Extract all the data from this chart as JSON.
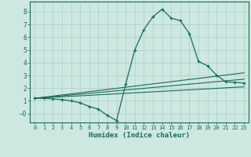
{
  "xlabel": "Humidex (Indice chaleur)",
  "background_color": "#cce8e0",
  "grid_color": "#aacfc8",
  "line_color": "#1a6b5a",
  "xlim": [
    -0.5,
    23.5
  ],
  "ylim": [
    -0.7,
    8.8
  ],
  "xticks": [
    0,
    1,
    2,
    3,
    4,
    5,
    6,
    7,
    8,
    9,
    10,
    11,
    12,
    13,
    14,
    15,
    16,
    17,
    18,
    19,
    20,
    21,
    22,
    23
  ],
  "yticks": [
    0,
    1,
    2,
    3,
    4,
    5,
    6,
    7,
    8
  ],
  "ytick_labels": [
    "−0",
    "1",
    "2",
    "3",
    "4",
    "5",
    "6",
    "7",
    "8"
  ],
  "line1_x": [
    0,
    1,
    2,
    3,
    4,
    5,
    6,
    7,
    8,
    9,
    10,
    11,
    12,
    13,
    14,
    15,
    16,
    17,
    18,
    19,
    20,
    21,
    22,
    23
  ],
  "line1_y": [
    1.2,
    1.2,
    1.15,
    1.1,
    1.0,
    0.85,
    0.55,
    0.35,
    -0.15,
    -0.55,
    2.3,
    5.0,
    6.6,
    7.6,
    8.2,
    7.5,
    7.3,
    6.3,
    4.1,
    3.75,
    3.0,
    2.5,
    2.45,
    2.4
  ],
  "line2_x": [
    0,
    23
  ],
  "line2_y": [
    1.2,
    3.2
  ],
  "line3_x": [
    0,
    23
  ],
  "line3_y": [
    1.2,
    2.7
  ],
  "line4_x": [
    0,
    23
  ],
  "line4_y": [
    1.2,
    2.1
  ]
}
